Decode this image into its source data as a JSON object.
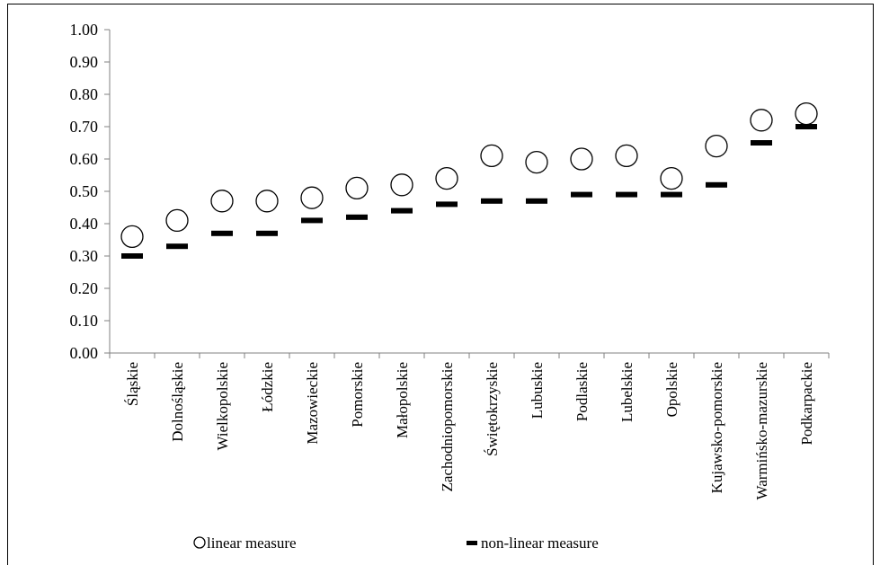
{
  "chart_data": {
    "type": "scatter",
    "categories": [
      "Śląskie",
      "Dolnośląskie",
      "Wielkopolskie",
      "Łódzkie",
      "Mazowieckie",
      "Pomorskie",
      "Małopolskie",
      "Zachodniopomorskie",
      "Świętokrzyskie",
      "Lubuskie",
      "Podlaskie",
      "Lubelskie",
      "Opolskie",
      "Kujawsko-pomorskie",
      "Warmińsko-mazurskie",
      "Podkarpackie"
    ],
    "series": [
      {
        "name": "linear measure",
        "marker": "circle",
        "values": [
          0.36,
          0.41,
          0.47,
          0.47,
          0.48,
          0.51,
          0.52,
          0.54,
          0.61,
          0.59,
          0.6,
          0.61,
          0.54,
          0.64,
          0.72,
          0.74
        ]
      },
      {
        "name": "non-linear measure",
        "marker": "dash",
        "values": [
          0.3,
          0.33,
          0.37,
          0.37,
          0.41,
          0.42,
          0.44,
          0.46,
          0.47,
          0.47,
          0.49,
          0.49,
          0.49,
          0.52,
          0.65,
          0.7
        ]
      }
    ],
    "ylim": [
      0,
      1
    ],
    "yticks": [
      "0.00",
      "0.10",
      "0.20",
      "0.30",
      "0.40",
      "0.50",
      "0.60",
      "0.70",
      "0.80",
      "0.90",
      "1.00"
    ],
    "grid": false,
    "legend_position": "bottom",
    "title": "",
    "xlabel": "",
    "ylabel": ""
  }
}
